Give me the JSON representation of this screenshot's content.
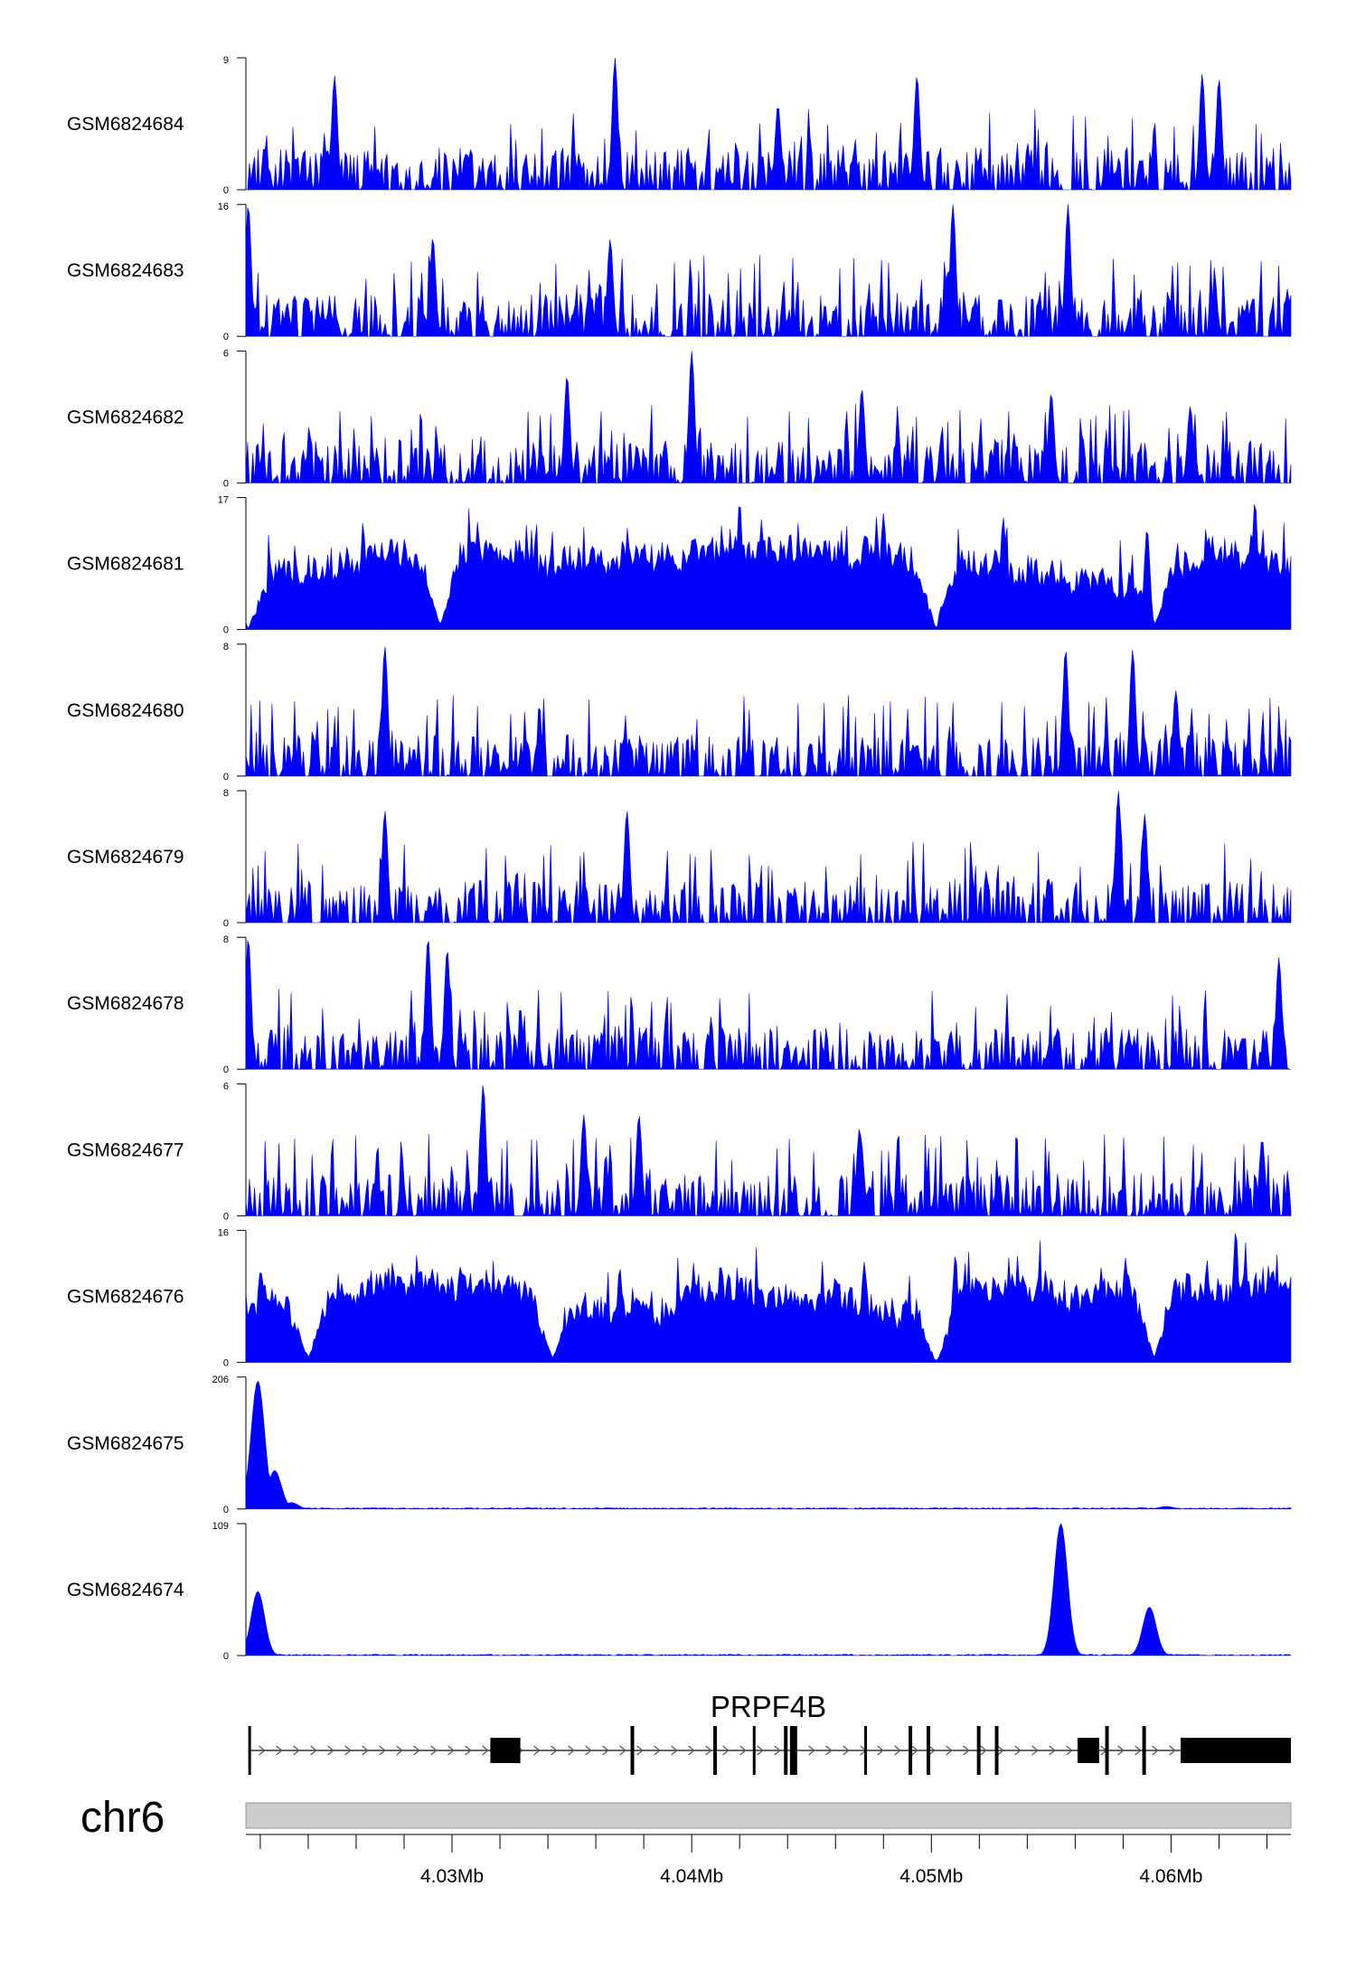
{
  "chart_data": {
    "type": "area",
    "track_fill": "#0000ff",
    "region": {
      "chromosome": "chr6",
      "x_start": 4.0214,
      "x_end": 4.065
    },
    "x_ticks": [
      {
        "value": 4.03,
        "label": "4.03Mb"
      },
      {
        "value": 4.04,
        "label": "4.04Mb"
      },
      {
        "value": 4.05,
        "label": "4.05Mb"
      },
      {
        "value": 4.06,
        "label": "4.06Mb"
      }
    ],
    "x_minor_ticks": [
      4.022,
      4.024,
      4.026,
      4.028,
      4.032,
      4.034,
      4.036,
      4.038,
      4.042,
      4.044,
      4.046,
      4.048,
      4.052,
      4.054,
      4.056,
      4.058,
      4.062,
      4.064
    ],
    "tracks": [
      {
        "name": "GSM6824684",
        "ymax": 9,
        "ymax_label": "9",
        "ymin_label": "0",
        "profile": "sparse",
        "peaks": [
          [
            4.0251,
            7.8
          ],
          [
            4.0368,
            9
          ],
          [
            4.0436,
            5.8
          ],
          [
            4.0494,
            7.8
          ],
          [
            4.0613,
            7.9
          ],
          [
            4.062,
            7.6
          ]
        ]
      },
      {
        "name": "GSM6824683",
        "ymax": 16,
        "ymax_label": "16",
        "ymin_label": "0",
        "profile": "sparse",
        "peaks": [
          [
            4.0215,
            16
          ],
          [
            4.0292,
            12
          ],
          [
            4.0366,
            11.8
          ],
          [
            4.0509,
            16
          ],
          [
            4.0557,
            16
          ]
        ]
      },
      {
        "name": "GSM6824682",
        "ymax": 6,
        "ymax_label": "6",
        "ymin_label": "0",
        "profile": "sparse",
        "peaks": [
          [
            4.0348,
            4.9
          ],
          [
            4.04,
            6
          ],
          [
            4.0471,
            4.3
          ],
          [
            4.055,
            4.1
          ],
          [
            4.0608,
            3.5
          ]
        ]
      },
      {
        "name": "GSM6824681",
        "ymax": 17,
        "ymax_label": "17",
        "ymin_label": "0",
        "profile": "dense",
        "peaks": [
          [
            4.024,
            7
          ],
          [
            4.031,
            10
          ],
          [
            4.038,
            9
          ],
          [
            4.042,
            16.5
          ],
          [
            4.048,
            15
          ],
          [
            4.053,
            14.5
          ],
          [
            4.059,
            13
          ],
          [
            4.0635,
            16.5
          ]
        ],
        "dips": [
          [
            4.0215,
            0
          ],
          [
            4.0295,
            0.5
          ],
          [
            4.0502,
            0
          ],
          [
            4.0593,
            0.5
          ]
        ]
      },
      {
        "name": "GSM6824680",
        "ymax": 8,
        "ymax_label": "8",
        "ymin_label": "0",
        "profile": "sparse",
        "peaks": [
          [
            4.0272,
            7.9
          ],
          [
            4.0556,
            7.7
          ],
          [
            4.0584,
            7.7
          ],
          [
            4.0602,
            5.2
          ]
        ]
      },
      {
        "name": "GSM6824679",
        "ymax": 8,
        "ymax_label": "8",
        "ymin_label": "0",
        "profile": "sparse",
        "peaks": [
          [
            4.0272,
            6.8
          ],
          [
            4.0373,
            6.8
          ],
          [
            4.0578,
            8
          ],
          [
            4.0589,
            6.6
          ]
        ]
      },
      {
        "name": "GSM6824678",
        "ymax": 8,
        "ymax_label": "8",
        "ymin_label": "0",
        "profile": "sparse",
        "peaks": [
          [
            4.0215,
            8
          ],
          [
            4.029,
            8
          ],
          [
            4.0298,
            7.3
          ],
          [
            4.0645,
            6.8
          ]
        ]
      },
      {
        "name": "GSM6824677",
        "ymax": 6,
        "ymax_label": "6",
        "ymin_label": "0",
        "profile": "sparse",
        "peaks": [
          [
            4.0313,
            6
          ],
          [
            4.0355,
            4.6
          ],
          [
            4.0378,
            4.6
          ],
          [
            4.047,
            4
          ],
          [
            4.0638,
            3.5
          ]
        ]
      },
      {
        "name": "GSM6824676",
        "ymax": 16,
        "ymax_label": "16",
        "ymin_label": "0",
        "profile": "dense",
        "peaks": [
          [
            4.0265,
            9.6
          ],
          [
            4.037,
            11.5
          ],
          [
            4.0412,
            12
          ],
          [
            4.0472,
            12.2
          ],
          [
            4.051,
            13.1
          ],
          [
            4.0581,
            12.7
          ],
          [
            4.0627,
            16
          ]
        ],
        "dips": [
          [
            4.024,
            0.5
          ],
          [
            4.0342,
            0.5
          ],
          [
            4.0502,
            0
          ],
          [
            4.0593,
            0.5
          ]
        ]
      },
      {
        "name": "GSM6824675",
        "ymax": 206,
        "ymax_label": "206",
        "ymin_label": "0",
        "profile": "signal",
        "peaks": [
          [
            4.0219,
            200
          ],
          [
            4.0226,
            60
          ],
          [
            4.0233,
            10
          ],
          [
            4.0598,
            4
          ]
        ]
      },
      {
        "name": "GSM6824674",
        "ymax": 109,
        "ymax_label": "109",
        "ymin_label": "0",
        "profile": "signal",
        "peaks": [
          [
            4.0219,
            53
          ],
          [
            4.0554,
            109
          ],
          [
            4.0591,
            40
          ]
        ]
      }
    ],
    "gene": {
      "name": "PRPF4B",
      "strand": "+",
      "start": 4.0215,
      "end": 4.065,
      "exons": [
        [
          4.0215,
          4.0216
        ],
        [
          4.0316,
          4.03285
        ],
        [
          4.03745,
          4.0376
        ],
        [
          4.0409,
          4.04105
        ],
        [
          4.04255,
          4.04265
        ],
        [
          4.04385,
          4.044
        ],
        [
          4.0441,
          4.0444
        ],
        [
          4.0472,
          4.0473
        ],
        [
          4.04905,
          4.0492
        ],
        [
          4.0498,
          4.04995
        ],
        [
          4.0519,
          4.05205
        ],
        [
          4.05265,
          4.0528
        ],
        [
          4.0561,
          4.057
        ],
        [
          4.05725,
          4.0574
        ],
        [
          4.0588,
          4.05895
        ],
        [
          4.0604,
          4.065
        ]
      ]
    }
  }
}
